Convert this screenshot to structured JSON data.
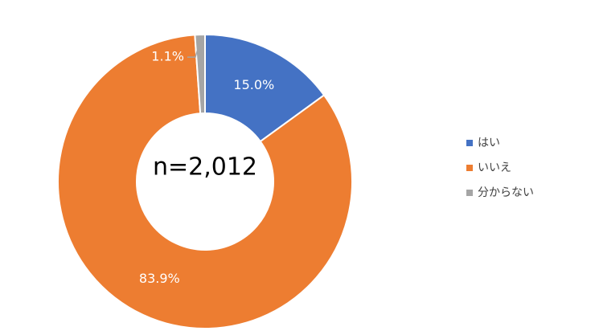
{
  "chart_data": {
    "type": "pie",
    "center_text": "n=2,012",
    "categories": [
      "はい",
      "いいえ",
      "分からない"
    ],
    "values": [
      15.0,
      83.9,
      1.1
    ],
    "value_labels": [
      "15.0%",
      "83.9%",
      "1.1%"
    ],
    "colors": [
      "#4472c4",
      "#ed7d31",
      "#a5a5a5"
    ],
    "legend": "right"
  }
}
